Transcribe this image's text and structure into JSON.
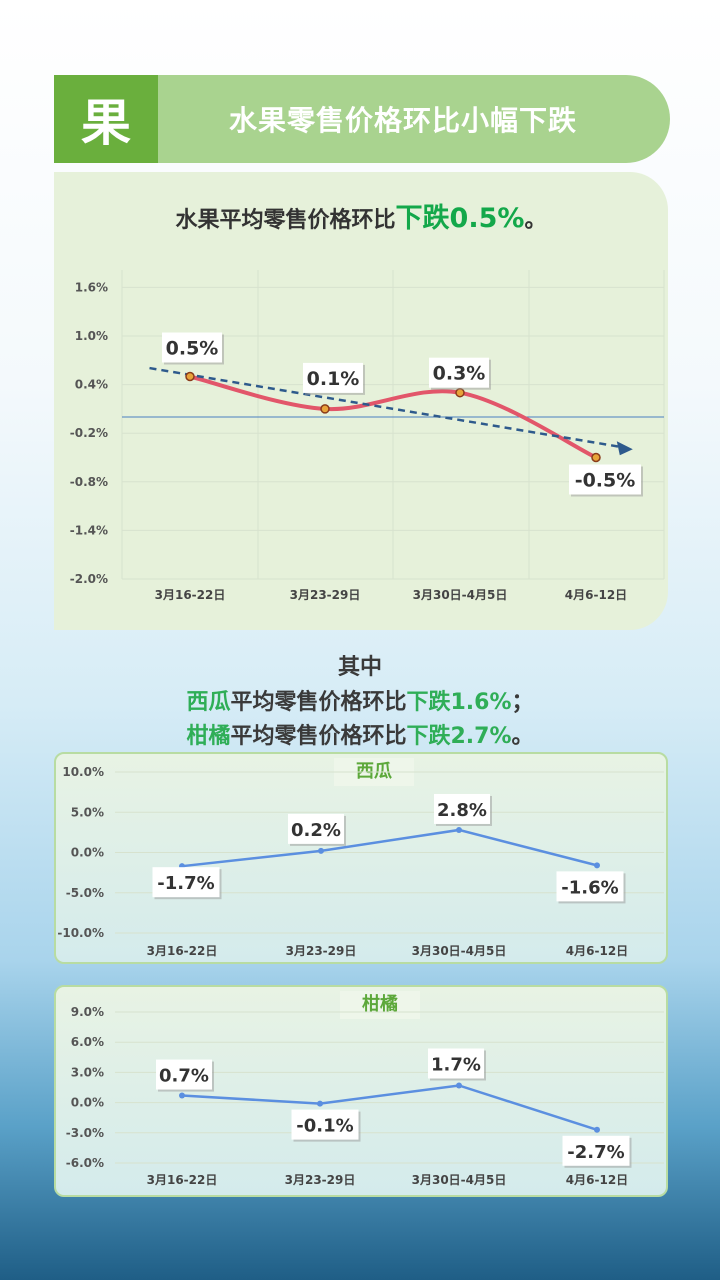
{
  "header": {
    "badge": "果",
    "title": "水果零售价格环比小幅下跌"
  },
  "main": {
    "title_prefix": "水果平均零售价格环比",
    "title_highlight": "下跌0.5%",
    "title_suffix": "。"
  },
  "summary": {
    "heading": "其中",
    "watermelon_name": "西瓜",
    "watermelon_text": "平均零售价格环比",
    "watermelon_change": "下跌1.6%",
    "watermelon_end": "；",
    "citrus_name": "柑橘",
    "citrus_text": "平均零售价格环比",
    "citrus_change": "下跌2.7%",
    "citrus_end": "。"
  },
  "colors": {
    "main_line": "#e2566a",
    "trend_line": "#2e5a8c",
    "mini_line": "#5b8fe0",
    "highlight_green": "#13a84a"
  },
  "chart_data": [
    {
      "type": "line",
      "title": "水果平均零售价格环比下跌0.5%。",
      "categories": [
        "3月16-22日",
        "3月23-29日",
        "3月30日-4月5日",
        "4月6-12日"
      ],
      "values": [
        0.5,
        0.1,
        0.3,
        -0.5
      ],
      "labels": [
        "0.5%",
        "0.1%",
        "0.3%",
        "-0.5%"
      ],
      "yticks": [
        "1.6%",
        "1.0%",
        "0.4%",
        "-0.2%",
        "-0.8%",
        "-1.4%",
        "-2.0%"
      ],
      "ylim": [
        -2.0,
        2.0
      ],
      "trendline": true,
      "grid": true
    },
    {
      "type": "line",
      "title": "西瓜",
      "categories": [
        "3月16-22日",
        "3月23-29日",
        "3月30日-4月5日",
        "4月6-12日"
      ],
      "values": [
        -1.7,
        0.2,
        2.8,
        -1.6
      ],
      "labels": [
        "-1.7%",
        "0.2%",
        "2.8%",
        "-1.6%"
      ],
      "yticks": [
        "10.0%",
        "5.0%",
        "0.0%",
        "-5.0%",
        "-10.0%"
      ],
      "ylim": [
        -10.0,
        10.0
      ],
      "grid": true
    },
    {
      "type": "line",
      "title": "柑橘",
      "categories": [
        "3月16-22日",
        "3月23-29日",
        "3月30日-4月5日",
        "4月6-12日"
      ],
      "values": [
        0.7,
        -0.1,
        1.7,
        -2.7
      ],
      "labels": [
        "0.7%",
        "-0.1%",
        "1.7%",
        "-2.7%"
      ],
      "yticks": [
        "9.0%",
        "6.0%",
        "3.0%",
        "0.0%",
        "-3.0%",
        "-6.0%"
      ],
      "ylim": [
        -6.0,
        9.0
      ],
      "grid": true
    }
  ]
}
